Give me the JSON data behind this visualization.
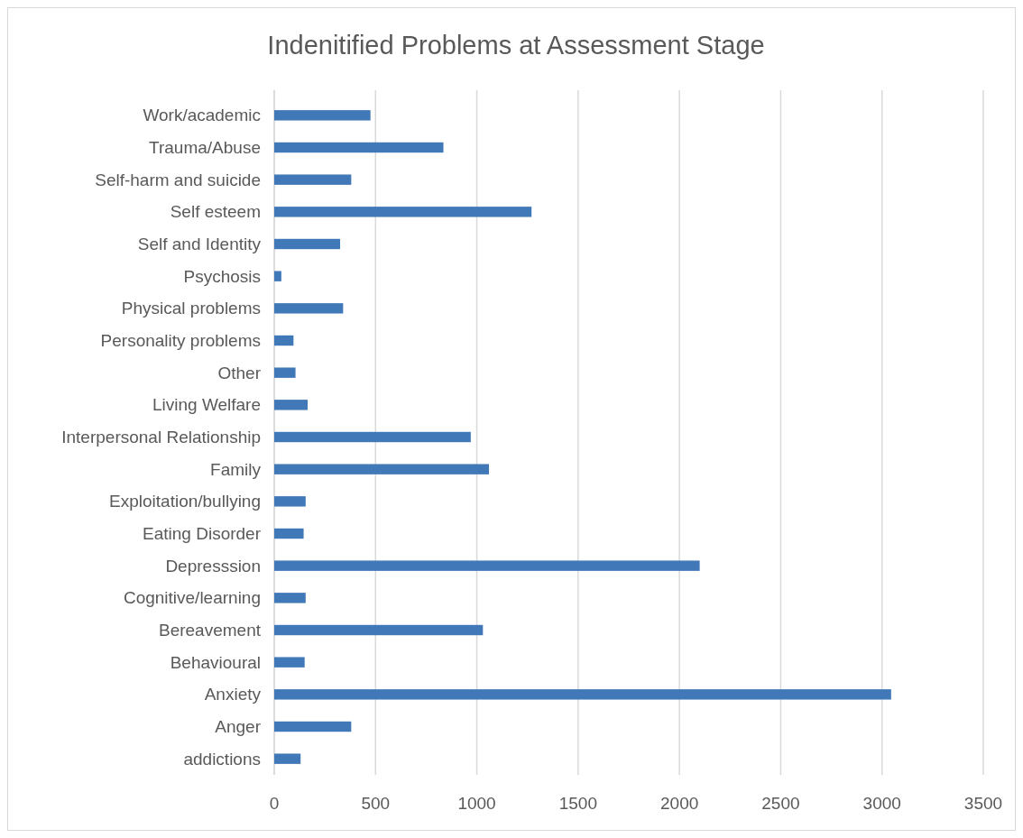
{
  "chart_data": {
    "type": "bar",
    "orientation": "horizontal",
    "title": "Indenitified Problems at Assessment Stage",
    "categories": [
      "Work/academic",
      "Trauma/Abuse",
      "Self-harm and suicide",
      "Self esteem",
      "Self and Identity",
      "Psychosis",
      "Physical problems",
      "Personality problems",
      "Other",
      "Living Welfare",
      "Interpersonal Relationship",
      "Family",
      "Exploitation/bullying",
      "Eating Disorder",
      "Depresssion",
      "Cognitive/learning",
      "Bereavement",
      "Behavioural",
      "Anxiety",
      "Anger",
      "addictions"
    ],
    "values": [
      475,
      835,
      380,
      1270,
      325,
      35,
      340,
      95,
      105,
      165,
      970,
      1060,
      155,
      145,
      2100,
      155,
      1030,
      150,
      3045,
      380,
      130
    ],
    "color": "#4078b8",
    "xlim": [
      0,
      3500
    ],
    "xticks": [
      0,
      500,
      1000,
      1500,
      2000,
      2500,
      3000,
      3500
    ],
    "grid": "x"
  }
}
